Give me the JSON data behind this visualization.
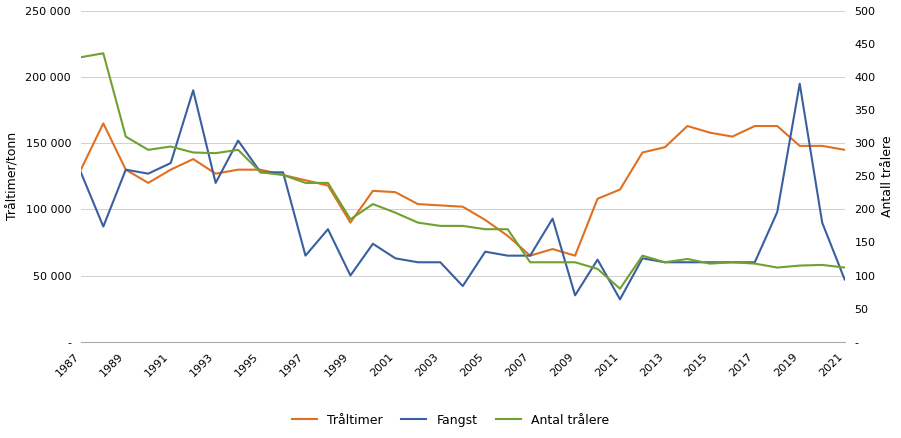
{
  "years": [
    1987,
    1988,
    1989,
    1990,
    1991,
    1992,
    1993,
    1994,
    1995,
    1996,
    1997,
    1998,
    1999,
    2000,
    2001,
    2002,
    2003,
    2004,
    2005,
    2006,
    2007,
    2008,
    2009,
    2010,
    2011,
    2012,
    2013,
    2014,
    2015,
    2016,
    2017,
    2018,
    2019,
    2020,
    2021
  ],
  "traltimer": [
    130000,
    165000,
    130000,
    120000,
    130000,
    138000,
    127000,
    130000,
    130000,
    126000,
    122000,
    118000,
    90000,
    114000,
    113000,
    104000,
    103000,
    102000,
    92000,
    80000,
    65000,
    70000,
    65000,
    108000,
    115000,
    143000,
    147000,
    163000,
    158000,
    155000,
    163000,
    163000,
    148000,
    148000,
    145000
  ],
  "fangst": [
    128000,
    87000,
    130000,
    127000,
    135000,
    190000,
    120000,
    152000,
    128000,
    128000,
    65000,
    85000,
    50000,
    74000,
    63000,
    60000,
    60000,
    42000,
    68000,
    65000,
    65000,
    93000,
    35000,
    62000,
    32000,
    63000,
    60000,
    60000,
    60000,
    60000,
    60000,
    98000,
    195000,
    90000,
    47000
  ],
  "antall_right": [
    430,
    436,
    310,
    290,
    295,
    286,
    285,
    290,
    256,
    252,
    240,
    240,
    185,
    208,
    195,
    180,
    175,
    175,
    170,
    170,
    120,
    120,
    120,
    110,
    80,
    130,
    120,
    125,
    118,
    120,
    118,
    112,
    115,
    116,
    112
  ],
  "tralimer_color": "#E07020",
  "fangst_color": "#3A5FA0",
  "antall_color": "#70A030",
  "ylabel_left": "Tråltimer/tonn",
  "ylabel_right": "Antall trålere",
  "ylim_left": [
    0,
    250000
  ],
  "ylim_right": [
    0,
    500
  ],
  "yticks_left": [
    0,
    50000,
    100000,
    150000,
    200000,
    250000
  ],
  "yticks_right": [
    0,
    50,
    100,
    150,
    200,
    250,
    300,
    350,
    400,
    450,
    500
  ],
  "legend_labels": [
    "Tråltimer",
    "Fangst",
    "Antal trålere"
  ],
  "background_color": "#ffffff",
  "grid_color": "#d0d0d0",
  "linewidth": 1.5
}
